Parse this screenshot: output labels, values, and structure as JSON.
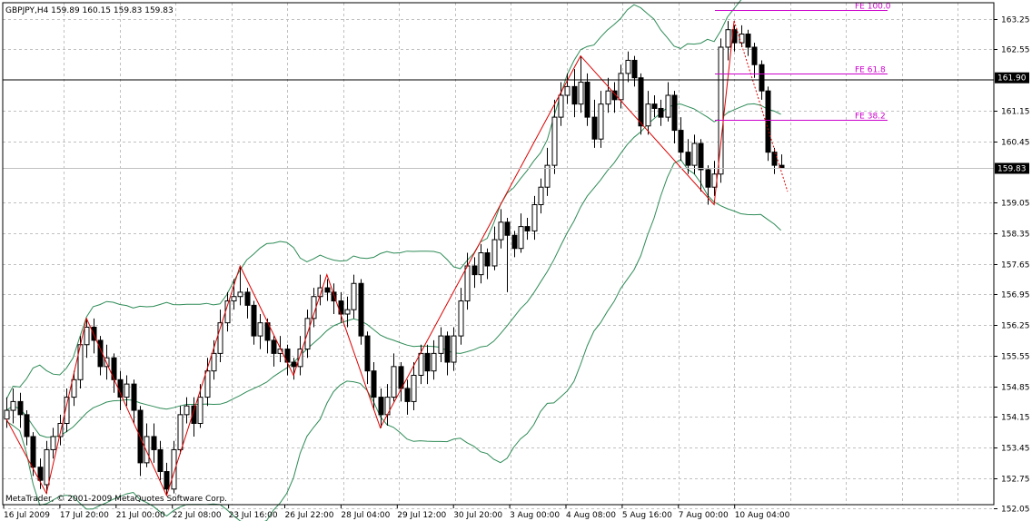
{
  "window": {
    "info_line": "GBPJPY,H4  159.89 160.15 159.83 159.83",
    "copyright": "MetaTrader, © 2001-2009 MetaQuotes Software Corp."
  },
  "chart_data": {
    "type": "candlestick",
    "symbol": "GBPJPY",
    "timeframe": "H4",
    "ohlc_last": {
      "open": 159.89,
      "high": 160.15,
      "low": 159.83,
      "close": 159.83
    },
    "current_price": 159.83,
    "hline_price": 161.9,
    "y_ticks": [
      "163.25",
      "162.55",
      "161.90",
      "161.15",
      "160.45",
      "159.83",
      "159.05",
      "158.35",
      "157.65",
      "156.95",
      "156.25",
      "155.55",
      "154.85",
      "154.15",
      "153.45",
      "152.75",
      "152.05"
    ],
    "x_ticks": [
      "16 Jul 2009",
      "17 Jul 20:00",
      "21 Jul 00:00",
      "22 Jul 08:00",
      "23 Jul 16:00",
      "26 Jul 22:00",
      "28 Jul 04:00",
      "29 Jul 12:00",
      "30 Jul 20:00",
      "3 Aug 00:00",
      "4 Aug 08:00",
      "5 Aug 16:00",
      "7 Aug 00:00",
      "10 Aug 04:00"
    ],
    "fibo_levels": [
      {
        "label": "FE 100.0",
        "value": 163.44
      },
      {
        "label": "FE 61.8",
        "value": 162.0
      },
      {
        "label": "FE 38.2",
        "value": 160.95
      }
    ],
    "zigzag_prices": [
      154.1,
      152.4,
      156.4,
      152.35,
      157.6,
      155.1,
      157.4,
      153.9,
      162.4,
      159.0,
      163.2
    ],
    "projection_prices": [
      163.2,
      159.3
    ],
    "candles": [
      [
        154.1,
        154.3,
        154.6,
        153.9
      ],
      [
        154.3,
        154.5,
        154.8,
        154.0
      ],
      [
        154.5,
        154.2,
        154.7,
        153.9
      ],
      [
        154.2,
        153.7,
        154.3,
        153.5
      ],
      [
        153.7,
        153.0,
        153.8,
        152.8
      ],
      [
        153.0,
        152.7,
        153.2,
        152.5
      ],
      [
        152.6,
        153.4,
        153.6,
        152.4
      ],
      [
        153.4,
        153.7,
        153.9,
        153.2
      ],
      [
        153.7,
        154.0,
        154.2,
        153.5
      ],
      [
        154.0,
        154.6,
        154.8,
        153.8
      ],
      [
        154.6,
        155.0,
        155.2,
        154.4
      ],
      [
        155.0,
        155.8,
        156.0,
        154.8
      ],
      [
        155.8,
        156.2,
        156.4,
        155.5
      ],
      [
        156.2,
        155.9,
        156.4,
        155.6
      ],
      [
        155.9,
        155.3,
        156.0,
        155.1
      ],
      [
        155.3,
        155.5,
        155.8,
        155.0
      ],
      [
        155.5,
        155.0,
        155.6,
        154.7
      ],
      [
        155.0,
        154.6,
        155.2,
        154.3
      ],
      [
        154.6,
        154.9,
        155.1,
        154.4
      ],
      [
        154.9,
        154.3,
        155.0,
        154.0
      ],
      [
        154.3,
        153.1,
        154.4,
        152.8
      ],
      [
        153.1,
        153.7,
        154.0,
        153.0
      ],
      [
        153.7,
        153.4,
        154.0,
        153.1
      ],
      [
        153.4,
        152.9,
        153.6,
        152.7
      ],
      [
        152.9,
        152.5,
        153.1,
        152.35
      ],
      [
        152.5,
        153.4,
        153.6,
        152.4
      ],
      [
        153.4,
        154.2,
        154.4,
        153.3
      ],
      [
        154.2,
        154.4,
        154.6,
        154.0
      ],
      [
        154.4,
        154.0,
        154.6,
        153.7
      ],
      [
        154.0,
        154.6,
        154.9,
        153.9
      ],
      [
        154.6,
        155.2,
        155.5,
        154.4
      ],
      [
        155.2,
        155.6,
        155.9,
        155.0
      ],
      [
        155.6,
        156.3,
        156.6,
        155.4
      ],
      [
        156.3,
        156.8,
        157.0,
        156.1
      ],
      [
        156.8,
        156.9,
        157.3,
        156.6
      ],
      [
        156.9,
        157.0,
        157.6,
        156.7
      ],
      [
        157.0,
        156.7,
        157.1,
        156.4
      ],
      [
        156.7,
        156.0,
        156.8,
        155.8
      ],
      [
        156.0,
        156.3,
        156.5,
        155.7
      ],
      [
        156.3,
        155.9,
        156.4,
        155.6
      ],
      [
        155.9,
        155.6,
        156.0,
        155.3
      ],
      [
        155.6,
        155.7,
        156.0,
        155.4
      ],
      [
        155.7,
        155.4,
        155.8,
        155.1
      ],
      [
        155.4,
        155.3,
        155.5,
        155.0
      ],
      [
        155.3,
        155.7,
        156.0,
        155.1
      ],
      [
        155.7,
        156.4,
        156.6,
        155.5
      ],
      [
        156.4,
        156.9,
        157.1,
        156.2
      ],
      [
        156.9,
        157.1,
        157.4,
        156.7
      ],
      [
        157.1,
        157.0,
        157.3,
        156.8
      ],
      [
        157.0,
        156.8,
        157.2,
        156.5
      ],
      [
        156.8,
        156.5,
        157.0,
        156.3
      ],
      [
        156.5,
        156.6,
        156.9,
        156.2
      ],
      [
        156.6,
        157.2,
        157.4,
        156.4
      ],
      [
        157.2,
        156.0,
        157.3,
        155.8
      ],
      [
        156.0,
        155.2,
        156.1,
        154.9
      ],
      [
        155.2,
        154.6,
        155.4,
        154.3
      ],
      [
        154.6,
        154.2,
        154.8,
        153.9
      ],
      [
        154.2,
        154.6,
        154.9,
        153.95
      ],
      [
        154.6,
        155.3,
        155.6,
        154.5
      ],
      [
        155.3,
        154.8,
        155.4,
        154.5
      ],
      [
        154.8,
        154.5,
        155.0,
        154.2
      ],
      [
        154.5,
        155.1,
        155.4,
        154.3
      ],
      [
        155.1,
        155.6,
        155.8,
        154.9
      ],
      [
        155.6,
        155.2,
        155.8,
        154.9
      ],
      [
        155.2,
        155.6,
        155.9,
        155.0
      ],
      [
        155.6,
        156.0,
        156.2,
        155.4
      ],
      [
        156.0,
        155.4,
        156.1,
        155.1
      ],
      [
        155.4,
        156.0,
        156.2,
        155.2
      ],
      [
        156.0,
        156.8,
        157.1,
        155.8
      ],
      [
        156.8,
        157.6,
        157.9,
        156.6
      ],
      [
        157.6,
        157.4,
        157.8,
        157.1
      ],
      [
        157.4,
        157.9,
        158.1,
        157.2
      ],
      [
        157.9,
        157.6,
        158.0,
        157.3
      ],
      [
        157.6,
        158.2,
        158.5,
        157.5
      ],
      [
        158.2,
        158.6,
        158.9,
        158.0
      ],
      [
        158.6,
        158.3,
        158.7,
        157.0
      ],
      [
        158.3,
        158.0,
        158.4,
        157.8
      ],
      [
        158.0,
        158.5,
        158.8,
        157.9
      ],
      [
        158.5,
        158.4,
        158.7,
        158.2
      ],
      [
        158.4,
        159.0,
        159.2,
        158.2
      ],
      [
        159.0,
        159.4,
        159.6,
        158.8
      ],
      [
        159.4,
        159.9,
        160.3,
        159.2
      ],
      [
        159.9,
        161.0,
        161.4,
        159.7
      ],
      [
        161.0,
        161.5,
        161.8,
        160.8
      ],
      [
        161.5,
        161.7,
        162.0,
        161.3
      ],
      [
        161.7,
        161.3,
        162.1,
        161.0
      ],
      [
        161.3,
        161.8,
        162.4,
        161.1
      ],
      [
        161.8,
        161.0,
        162.0,
        160.8
      ],
      [
        161.0,
        160.5,
        161.4,
        160.3
      ],
      [
        160.5,
        161.3,
        161.6,
        160.3
      ],
      [
        161.3,
        161.6,
        161.9,
        161.1
      ],
      [
        161.6,
        161.4,
        161.8,
        161.1
      ],
      [
        161.4,
        162.0,
        162.2,
        161.2
      ],
      [
        162.0,
        162.3,
        162.5,
        161.8
      ],
      [
        162.3,
        161.9,
        162.4,
        161.7
      ],
      [
        161.9,
        160.8,
        162.0,
        160.6
      ],
      [
        160.8,
        161.3,
        161.6,
        160.6
      ],
      [
        161.3,
        161.2,
        161.5,
        161.0
      ],
      [
        161.2,
        161.0,
        161.4,
        160.8
      ],
      [
        161.0,
        161.5,
        161.8,
        160.9
      ],
      [
        161.5,
        160.7,
        161.6,
        160.4
      ],
      [
        160.7,
        160.2,
        161.0,
        160.0
      ],
      [
        160.2,
        159.9,
        160.5,
        159.7
      ],
      [
        159.9,
        160.4,
        160.6,
        159.7
      ],
      [
        160.4,
        159.8,
        160.5,
        159.3
      ],
      [
        159.8,
        159.4,
        159.9,
        159.0
      ],
      [
        159.4,
        159.7,
        160.0,
        159.2
      ],
      [
        159.7,
        162.6,
        162.8,
        159.5
      ],
      [
        162.6,
        163.0,
        163.2,
        162.3
      ],
      [
        163.0,
        162.7,
        163.1,
        162.5
      ],
      [
        162.7,
        162.9,
        163.1,
        162.6
      ],
      [
        162.9,
        162.6,
        163.0,
        162.4
      ],
      [
        162.6,
        162.2,
        162.7,
        161.9
      ],
      [
        162.2,
        161.6,
        162.3,
        161.4
      ],
      [
        161.6,
        160.2,
        161.7,
        160.0
      ],
      [
        160.2,
        159.9,
        160.3,
        159.7
      ],
      [
        159.9,
        159.83,
        160.15,
        159.83
      ]
    ]
  },
  "colors": {
    "background": "#ffffff",
    "grid": "#c0c0c0",
    "candle": "#000000",
    "bollinger": "#2e8b57",
    "zigzag": "#dd0000",
    "fibo": "#cc00cc",
    "current_price_bg": "#000000",
    "current_price_fg": "#ffffff"
  }
}
